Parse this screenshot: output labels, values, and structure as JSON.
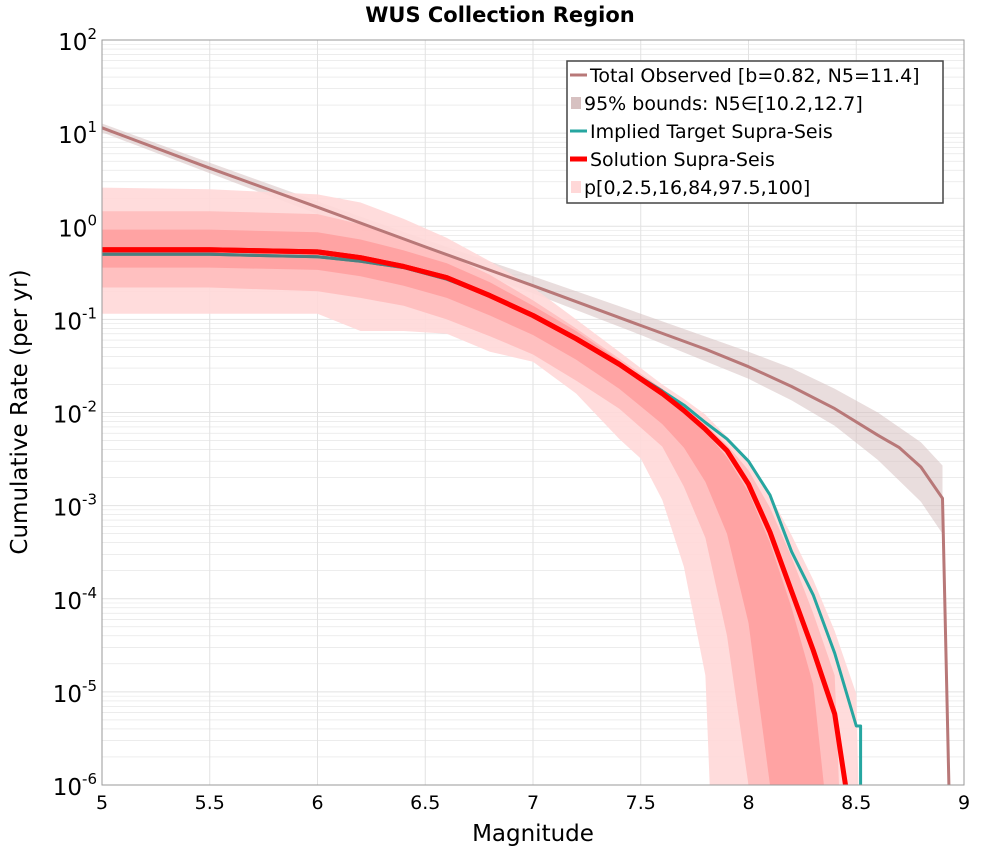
{
  "colors": {
    "observed": "#b87878",
    "observed_band": "#d7c1c1",
    "target": "#26a6a0",
    "solution": "#ff0000",
    "pct_light": "#ffd8d8",
    "pct_mid": "#ffbcbc",
    "pct_dark": "#ffa0a0",
    "grid": "#e2e2e2"
  },
  "chart_data": {
    "type": "line",
    "title": "WUS Collection Region",
    "xlabel": "Magnitude",
    "ylabel": "Cumulative Rate (per yr)",
    "xlim": [
      5,
      9
    ],
    "ylim": [
      1e-06,
      100
    ],
    "yscale": "log",
    "grid": true,
    "legend_position": "top-right",
    "x_ticks": [
      "5",
      "5.5",
      "6",
      "6.5",
      "7",
      "7.5",
      "8",
      "8.5",
      "9"
    ],
    "y_ticks": [
      {
        "base": "10",
        "exp": "2"
      },
      {
        "base": "10",
        "exp": "1"
      },
      {
        "base": "10",
        "exp": "0"
      },
      {
        "base": "10",
        "exp": "-1"
      },
      {
        "base": "10",
        "exp": "-2"
      },
      {
        "base": "10",
        "exp": "-3"
      },
      {
        "base": "10",
        "exp": "-4"
      },
      {
        "base": "10",
        "exp": "-5"
      },
      {
        "base": "10",
        "exp": "-6"
      }
    ],
    "legend": [
      {
        "label": "Total Observed [b=0.82, N5=11.4]",
        "kind": "line",
        "color_key": "observed"
      },
      {
        "label": "95% bounds: N5∈[10.2,12.7]",
        "kind": "band",
        "color_key": "observed_band"
      },
      {
        "label": "Implied Target Supra-Seis",
        "kind": "line",
        "color_key": "target"
      },
      {
        "label": "Solution Supra-Seis",
        "kind": "thick",
        "color_key": "solution"
      },
      {
        "label": "p[0,2.5,16,84,97.5,100]",
        "kind": "band",
        "color_key": "pct_light"
      }
    ],
    "series": [
      {
        "name": "Total Observed [b=0.82, N5=11.4]",
        "x": [
          5,
          5.5,
          6,
          6.5,
          7,
          7.5,
          7.8,
          8,
          8.2,
          8.4,
          8.6,
          8.7,
          8.8,
          8.9,
          8.93
        ],
        "values": [
          11.4,
          4.2,
          1.6,
          0.6,
          0.23,
          0.086,
          0.048,
          0.031,
          0.019,
          0.011,
          0.0057,
          0.0042,
          0.0026,
          0.0012,
          1e-06
        ]
      },
      {
        "name": "Implied Target Supra-Seis",
        "x": [
          5,
          5.5,
          6,
          6.2,
          6.4,
          6.6,
          6.8,
          7,
          7.2,
          7.4,
          7.6,
          7.7,
          7.8,
          7.9,
          8,
          8.1,
          8.2,
          8.3,
          8.4,
          8.5,
          8.52,
          8.52
        ],
        "values": [
          0.5,
          0.5,
          0.47,
          0.42,
          0.36,
          0.27,
          0.18,
          0.11,
          0.062,
          0.033,
          0.017,
          0.012,
          0.0078,
          0.0052,
          0.003,
          0.0013,
          0.00032,
          0.00011,
          2.6e-05,
          4.3e-06,
          4.3e-06,
          1e-06
        ]
      },
      {
        "name": "Solution Supra-Seis",
        "x": [
          5,
          5.5,
          6,
          6.2,
          6.4,
          6.6,
          6.8,
          7,
          7.2,
          7.4,
          7.6,
          7.7,
          7.8,
          7.9,
          8,
          8.1,
          8.2,
          8.3,
          8.4,
          8.45
        ],
        "values": [
          0.56,
          0.56,
          0.53,
          0.46,
          0.37,
          0.28,
          0.18,
          0.11,
          0.062,
          0.033,
          0.016,
          0.0105,
          0.0066,
          0.0039,
          0.0017,
          0.00052,
          0.00012,
          2.8e-05,
          5.8e-06,
          1e-06
        ]
      }
    ],
    "bands": [
      {
        "name": "95% bounds: N5∈[10.2,12.7]",
        "x": [
          5,
          5.5,
          6,
          6.5,
          7,
          7.5,
          8,
          8.2,
          8.4,
          8.6,
          8.8,
          8.9
        ],
        "upper": [
          12.7,
          4.8,
          1.85,
          0.72,
          0.29,
          0.115,
          0.045,
          0.03,
          0.018,
          0.01,
          0.0048,
          0.0027
        ],
        "lower": [
          10.2,
          3.7,
          1.35,
          0.5,
          0.19,
          0.068,
          0.023,
          0.0135,
          0.0072,
          0.0031,
          0.0011,
          0.0005
        ]
      },
      {
        "name": "p0-p100",
        "x": [
          5,
          5.5,
          6,
          6.2,
          6.4,
          6.6,
          6.8,
          7,
          7.2,
          7.4,
          7.5,
          7.6,
          7.7,
          7.8,
          7.82,
          7.9,
          8,
          8.1,
          8.2,
          8.3,
          8.4,
          8.5,
          8.51
        ],
        "upper": [
          2.6,
          2.5,
          2.2,
          1.8,
          1.2,
          0.75,
          0.42,
          0.22,
          0.1,
          0.045,
          0.03,
          0.02,
          0.014,
          0.0095,
          0.0085,
          0.0055,
          0.003,
          0.0013,
          0.00048,
          0.00016,
          4.5e-05,
          9.5e-06,
          1e-06
        ],
        "lower": [
          0.115,
          0.115,
          0.115,
          0.075,
          0.075,
          0.07,
          0.045,
          0.035,
          0.016,
          0.0052,
          0.0032,
          0.00115,
          0.00022,
          1.5e-05,
          1e-06,
          1e-06,
          1e-06,
          1e-06,
          1e-06,
          1e-06,
          1e-06,
          1e-06,
          1e-06
        ]
      },
      {
        "name": "p2.5-p97.5",
        "x": [
          5,
          5.5,
          6,
          6.2,
          6.4,
          6.6,
          6.8,
          7,
          7.2,
          7.4,
          7.6,
          7.7,
          7.8,
          7.9,
          8,
          8.1,
          8.2,
          8.3,
          8.4,
          8.42
        ],
        "upper": [
          1.45,
          1.45,
          1.35,
          1.05,
          0.75,
          0.5,
          0.3,
          0.16,
          0.08,
          0.038,
          0.018,
          0.012,
          0.0075,
          0.0045,
          0.0024,
          0.00095,
          0.00028,
          7e-05,
          1.5e-05,
          1e-06
        ],
        "lower": [
          0.22,
          0.22,
          0.2,
          0.17,
          0.14,
          0.1,
          0.066,
          0.042,
          0.022,
          0.011,
          0.0043,
          0.0016,
          0.00045,
          4e-05,
          1e-06,
          1e-06,
          1e-06,
          1e-06,
          1e-06,
          1e-06
        ]
      },
      {
        "name": "p16-p84",
        "x": [
          5,
          5.5,
          6,
          6.2,
          6.4,
          6.6,
          6.8,
          7,
          7.2,
          7.4,
          7.6,
          7.7,
          7.8,
          7.9,
          8,
          8.1,
          8.2,
          8.3,
          8.35
        ],
        "upper": [
          0.92,
          0.92,
          0.86,
          0.72,
          0.55,
          0.4,
          0.25,
          0.14,
          0.075,
          0.036,
          0.017,
          0.0105,
          0.0062,
          0.0033,
          0.0014,
          0.0004,
          8e-05,
          1.2e-05,
          1e-06
        ],
        "lower": [
          0.36,
          0.36,
          0.34,
          0.29,
          0.23,
          0.17,
          0.11,
          0.068,
          0.037,
          0.018,
          0.0075,
          0.0042,
          0.0018,
          0.0005,
          5.5e-05,
          1e-06,
          1e-06,
          1e-06,
          1e-06
        ]
      }
    ]
  }
}
